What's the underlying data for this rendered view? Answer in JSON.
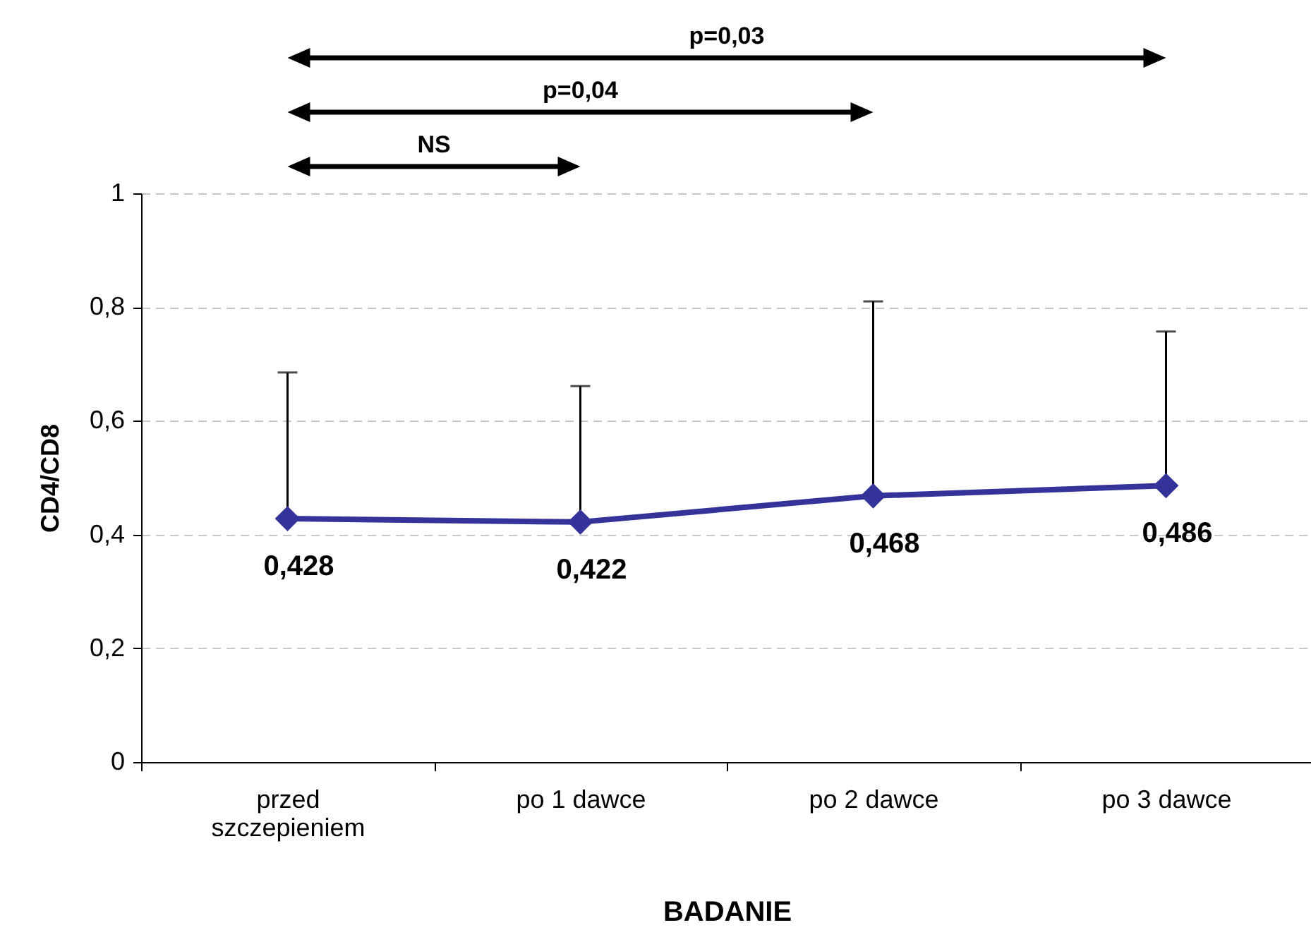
{
  "chart_data": {
    "type": "line",
    "xlabel": "BADANIE",
    "ylabel": "CD4/CD8",
    "categories": [
      "przed szczepieniem",
      "po 1 dawce",
      "po 2 dawce",
      "po 3 dawce"
    ],
    "series": [
      {
        "color": "#333399",
        "values": [
          0.428,
          0.422,
          0.468,
          0.486
        ],
        "value_labels": [
          "0,428",
          "0,422",
          "0,468",
          "0,486"
        ],
        "errors": [
          [
            0.428,
            0.685
          ],
          [
            0.422,
            0.661
          ],
          [
            0.468,
            0.81
          ],
          [
            0.486,
            0.757
          ]
        ]
      }
    ],
    "ylim": [
      0,
      1
    ],
    "yticks": [
      0,
      {
        "value": 0.2,
        "label": "0,2"
      },
      {
        "value": 0.4,
        "label": "0,4"
      },
      {
        "value": 0.6,
        "label": "0,6"
      },
      {
        "value": 0.8,
        "label": "0,8"
      },
      1
    ],
    "grid": "y",
    "marker": "diamond",
    "line_style": "solid",
    "annotations": [
      "p=0,03",
      "p=0,04",
      "NS"
    ]
  }
}
